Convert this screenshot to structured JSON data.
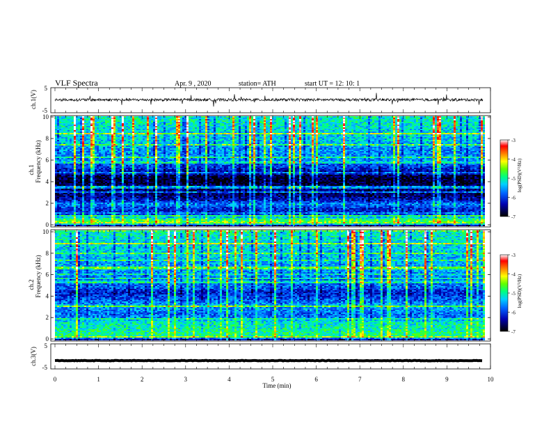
{
  "header": {
    "title": "VLF  Spectra",
    "date": "Apr. 9  , 2020",
    "station": "station= ATH",
    "start": "start  UT  =    12: 10: 1"
  },
  "chart_data": [
    {
      "type": "line",
      "name": "ch1-waveform",
      "ylabel": "ch.1(V)",
      "yticks": [
        "5",
        "-5"
      ],
      "ylim": [
        -5,
        5
      ],
      "baseline": 0.2,
      "noise_amplitude": 0.6,
      "xlim": [
        0,
        10
      ],
      "data_end": 9.83
    },
    {
      "type": "heatmap",
      "name": "ch1-spectrogram",
      "ylabel": "ch.1\nFrequency (kHz)",
      "yticks": [
        "10",
        "8",
        "6",
        "4",
        "2",
        "0"
      ],
      "ylim": [
        0,
        10
      ],
      "xlim": [
        0,
        10
      ],
      "data_end": 9.83,
      "colorbar": {
        "label": "log(PSD)(V²/Hz)",
        "ticks": [
          "-3",
          "-4",
          "-5",
          "-6",
          "-7"
        ],
        "range": [
          -7,
          -3
        ]
      },
      "profile_khz": [
        0,
        0.3,
        0.6,
        0.9,
        1.2,
        1.6,
        2.0,
        2.4,
        2.8,
        3.2,
        3.6,
        4.0,
        4.4,
        4.8,
        5.2,
        5.6,
        6.0,
        6.5,
        7.0,
        7.5,
        8.0,
        8.5,
        9.0,
        9.5,
        10.0
      ],
      "profile_log_psd": [
        -7.0,
        -4.4,
        -4.8,
        -5.6,
        -6.2,
        -6.1,
        -5.6,
        -6.3,
        -6.6,
        -6.5,
        -6.6,
        -6.8,
        -6.8,
        -6.6,
        -6.1,
        -5.9,
        -5.6,
        -5.6,
        -5.6,
        -5.4,
        -5.3,
        -5.3,
        -5.2,
        -5.1,
        -5.1
      ]
    },
    {
      "type": "heatmap",
      "name": "ch2-spectrogram",
      "ylabel": "ch.2\nFrequency (kHz)",
      "yticks": [
        "10",
        "8",
        "6",
        "4",
        "2",
        "0"
      ],
      "ylim": [
        0,
        10
      ],
      "xlim": [
        0,
        10
      ],
      "data_end": 9.83,
      "colorbar": {
        "label": "log(PSD)(V²/Hz)",
        "ticks": [
          "-3",
          "-4",
          "-5",
          "-6",
          "-7"
        ],
        "range": [
          -7,
          -3
        ]
      },
      "profile_khz": [
        0,
        0.3,
        0.6,
        0.9,
        1.2,
        1.6,
        2.0,
        2.4,
        2.8,
        3.2,
        3.6,
        4.0,
        4.4,
        4.8,
        5.2,
        5.6,
        6.0,
        6.5,
        7.0,
        7.5,
        8.0,
        8.5,
        9.0,
        9.5,
        10.0
      ],
      "profile_log_psd": [
        -6.8,
        -5.0,
        -4.9,
        -5.0,
        -5.1,
        -5.1,
        -5.6,
        -5.8,
        -5.6,
        -5.5,
        -5.8,
        -6.0,
        -6.2,
        -5.8,
        -5.8,
        -5.7,
        -5.6,
        -5.5,
        -5.5,
        -5.4,
        -5.3,
        -5.3,
        -5.2,
        -5.1,
        -5.1
      ]
    },
    {
      "type": "line",
      "name": "ch3-waveform",
      "ylabel": "ch.3(V)",
      "yticks": [
        "5",
        "-5"
      ],
      "ylim": [
        -5,
        5
      ],
      "baseline": -1.6,
      "noise_amplitude": 0.12,
      "xlim": [
        0,
        10
      ],
      "data_end": 9.83
    }
  ],
  "xaxis": {
    "label": "Time  (min)",
    "ticks": [
      "0",
      "1",
      "2",
      "3",
      "4",
      "5",
      "6",
      "7",
      "8",
      "9",
      "10"
    ],
    "range": [
      0,
      10
    ]
  }
}
